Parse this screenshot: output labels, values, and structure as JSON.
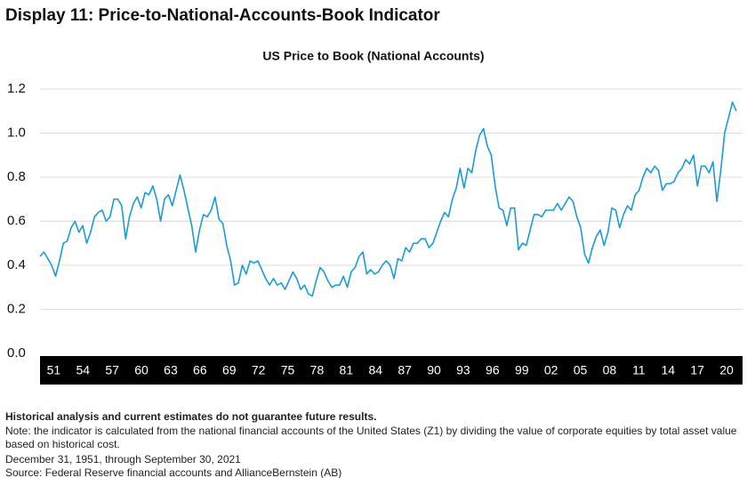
{
  "chart_data": {
    "type": "line",
    "title": "Display 11: Price-to-National-Accounts-Book Indicator",
    "subtitle": "US Price to Book (National Accounts)",
    "xlim": [
      1949.6,
      2021.0
    ],
    "xticks": [
      {
        "value": 1951,
        "label": "51"
      },
      {
        "value": 1954,
        "label": "54"
      },
      {
        "value": 1957,
        "label": "57"
      },
      {
        "value": 1960,
        "label": "60"
      },
      {
        "value": 1963,
        "label": "63"
      },
      {
        "value": 1966,
        "label": "66"
      },
      {
        "value": 1969,
        "label": "69"
      },
      {
        "value": 1972,
        "label": "72"
      },
      {
        "value": 1975,
        "label": "75"
      },
      {
        "value": 1978,
        "label": "78"
      },
      {
        "value": 1981,
        "label": "81"
      },
      {
        "value": 1984,
        "label": "84"
      },
      {
        "value": 1987,
        "label": "87"
      },
      {
        "value": 1990,
        "label": "90"
      },
      {
        "value": 1993,
        "label": "93"
      },
      {
        "value": 1996,
        "label": "96"
      },
      {
        "value": 1999,
        "label": "99"
      },
      {
        "value": 2002,
        "label": "02"
      },
      {
        "value": 2005,
        "label": "05"
      },
      {
        "value": 2008,
        "label": "08"
      },
      {
        "value": 2011,
        "label": "11"
      },
      {
        "value": 2014,
        "label": "14"
      },
      {
        "value": 2017,
        "label": "17"
      },
      {
        "value": 2020,
        "label": "20"
      }
    ],
    "ylim": [
      0,
      1.2
    ],
    "yticks": [
      {
        "value": 0,
        "label": "0.0"
      },
      {
        "value": 0.2,
        "label": "0.2"
      },
      {
        "value": 0.4,
        "label": "0.4"
      },
      {
        "value": 0.6,
        "label": "0.6"
      },
      {
        "value": 0.8,
        "label": "0.8"
      },
      {
        "value": 1.0,
        "label": "1.0"
      },
      {
        "value": 1.2,
        "label": "1.2"
      }
    ],
    "grid": true,
    "color": "#1a9bd7",
    "values": [
      0.44,
      0.46,
      0.43,
      0.4,
      0.35,
      0.42,
      0.5,
      0.51,
      0.57,
      0.6,
      0.55,
      0.58,
      0.5,
      0.55,
      0.62,
      0.64,
      0.65,
      0.6,
      0.62,
      0.7,
      0.7,
      0.67,
      0.52,
      0.62,
      0.68,
      0.71,
      0.66,
      0.73,
      0.72,
      0.76,
      0.7,
      0.6,
      0.7,
      0.72,
      0.67,
      0.74,
      0.81,
      0.74,
      0.66,
      0.58,
      0.46,
      0.56,
      0.63,
      0.62,
      0.65,
      0.71,
      0.61,
      0.59,
      0.49,
      0.42,
      0.31,
      0.32,
      0.4,
      0.36,
      0.42,
      0.41,
      0.42,
      0.38,
      0.34,
      0.31,
      0.34,
      0.31,
      0.32,
      0.29,
      0.33,
      0.37,
      0.34,
      0.29,
      0.31,
      0.27,
      0.26,
      0.33,
      0.39,
      0.37,
      0.33,
      0.3,
      0.31,
      0.31,
      0.35,
      0.3,
      0.37,
      0.39,
      0.44,
      0.46,
      0.36,
      0.38,
      0.36,
      0.37,
      0.4,
      0.42,
      0.4,
      0.34,
      0.43,
      0.42,
      0.48,
      0.46,
      0.5,
      0.5,
      0.52,
      0.52,
      0.48,
      0.5,
      0.55,
      0.6,
      0.64,
      0.62,
      0.7,
      0.75,
      0.84,
      0.75,
      0.84,
      0.82,
      0.92,
      0.99,
      1.02,
      0.94,
      0.9,
      0.76,
      0.66,
      0.65,
      0.58,
      0.66,
      0.66,
      0.47,
      0.5,
      0.49,
      0.56,
      0.63,
      0.63,
      0.62,
      0.65,
      0.65,
      0.65,
      0.68,
      0.65,
      0.68,
      0.71,
      0.69,
      0.62,
      0.57,
      0.45,
      0.41,
      0.48,
      0.53,
      0.56,
      0.49,
      0.55,
      0.66,
      0.65,
      0.57,
      0.63,
      0.67,
      0.65,
      0.72,
      0.74,
      0.8,
      0.84,
      0.82,
      0.85,
      0.83,
      0.74,
      0.77,
      0.77,
      0.78,
      0.82,
      0.84,
      0.88,
      0.86,
      0.9,
      0.76,
      0.85,
      0.85,
      0.82,
      0.87,
      0.69,
      0.83,
      1.0,
      1.07,
      1.14,
      1.1
    ]
  },
  "footnotes": {
    "disclaimer": "Historical analysis and current estimates do not guarantee future results.",
    "note": "Note: the indicator is calculated from the national financial accounts of the United States (Z1) by dividing the value of corporate equities by total asset value based on historical cost.",
    "period": "December 31, 1951, through September 30, 2021",
    "source": "Source: Federal Reserve financial accounts and AllianceBernstein (AB)"
  }
}
